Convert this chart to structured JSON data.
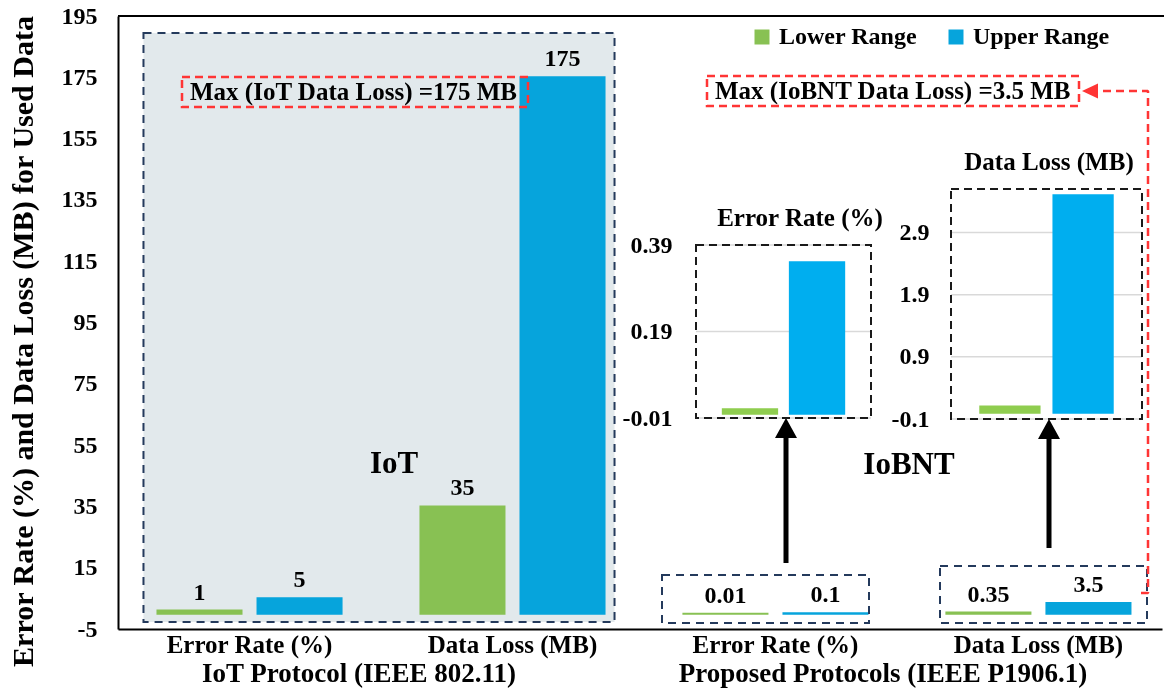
{
  "chart_data": [
    {
      "type": "bar",
      "ylabel": "Error Rate (%) and Data Loss (MB) for Used Data",
      "categories": [
        "Error Rate (%)",
        "Data Loss (MB)",
        "Error Rate (%)",
        "Data Loss (MB)"
      ],
      "series": [
        {
          "name": "Lower Range",
          "color": "#88c153",
          "values": [
            1,
            35,
            0.01,
            0.35
          ]
        },
        {
          "name": "Upper Range",
          "color": "#06a4dc",
          "values": [
            5,
            175,
            0.1,
            3.5
          ]
        }
      ],
      "ylim": [
        -5,
        195
      ],
      "yticks": [
        -5,
        15,
        35,
        55,
        75,
        95,
        115,
        135,
        155,
        175,
        195
      ],
      "grid": false,
      "legend": "top right",
      "data_labels": true,
      "bands": [
        {
          "axis": "x",
          "from": "Error Rate (%)",
          "to": "Data Loss (MB)",
          "color": "#e2e9ec"
        }
      ],
      "annotations": [
        "IoT Protocol (IEEE 802.11)",
        "Proposed Protocols (IEEE P1906.1)",
        "Max (IoT Data Loss) =175 MB",
        "Max (IoBNT Data Loss) =3.5 MB",
        "IoT",
        "IoBNT"
      ]
    },
    {
      "type": "bar",
      "title": "Error Rate (%)",
      "categories": [
        null,
        null
      ],
      "values": [
        0.01,
        0.35
      ],
      "colors": [
        "#8fcd4f",
        "#00aeef"
      ],
      "ylim": [
        -0.01,
        0.39
      ],
      "yticks": [
        -0.01,
        0.19,
        0.39
      ],
      "grid": "y"
    },
    {
      "type": "bar",
      "title": "Data Loss (MB)",
      "categories": [
        null,
        null
      ],
      "values": [
        0.1,
        3.5
      ],
      "colors": [
        "#8fcd4f",
        "#00aeef"
      ],
      "ylim": [
        -0.1,
        3.6
      ],
      "yticks": [
        -0.1,
        0.9,
        1.9,
        2.9
      ],
      "grid": "y"
    }
  ]
}
